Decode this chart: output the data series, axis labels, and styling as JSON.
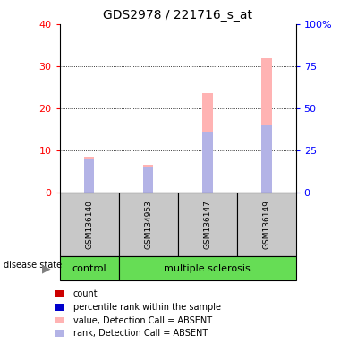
{
  "title": "GDS2978 / 221716_s_at",
  "samples": [
    "GSM136140",
    "GSM134953",
    "GSM136147",
    "GSM136149"
  ],
  "groups": [
    {
      "label": "control",
      "start": 0,
      "end": 0,
      "color": "#77dd77"
    },
    {
      "label": "multiple sclerosis",
      "start": 1,
      "end": 3,
      "color": "#77dd77"
    }
  ],
  "value_absent": [
    8.5,
    6.5,
    23.5,
    32.0
  ],
  "rank_absent": [
    8.0,
    6.2,
    14.5,
    16.0
  ],
  "ylim_left": [
    0,
    40
  ],
  "ylim_right": [
    0,
    100
  ],
  "yticks_left": [
    0,
    10,
    20,
    30,
    40
  ],
  "yticks_right": [
    0,
    25,
    50,
    75,
    100
  ],
  "ytick_labels_right": [
    "0",
    "25",
    "50",
    "75",
    "100%"
  ],
  "color_value_absent": "#ffb3b3",
  "color_rank_absent": "#b3b3e6",
  "color_count": "#cc0000",
  "color_percentile": "#0000cc",
  "label_bg_color": "#c8c8c8",
  "bar_width": 0.18,
  "legend_items": [
    {
      "label": "count",
      "color": "#cc0000"
    },
    {
      "label": "percentile rank within the sample",
      "color": "#0000cc"
    },
    {
      "label": "value, Detection Call = ABSENT",
      "color": "#ffb3b3"
    },
    {
      "label": "rank, Detection Call = ABSENT",
      "color": "#b3b3e6"
    }
  ]
}
